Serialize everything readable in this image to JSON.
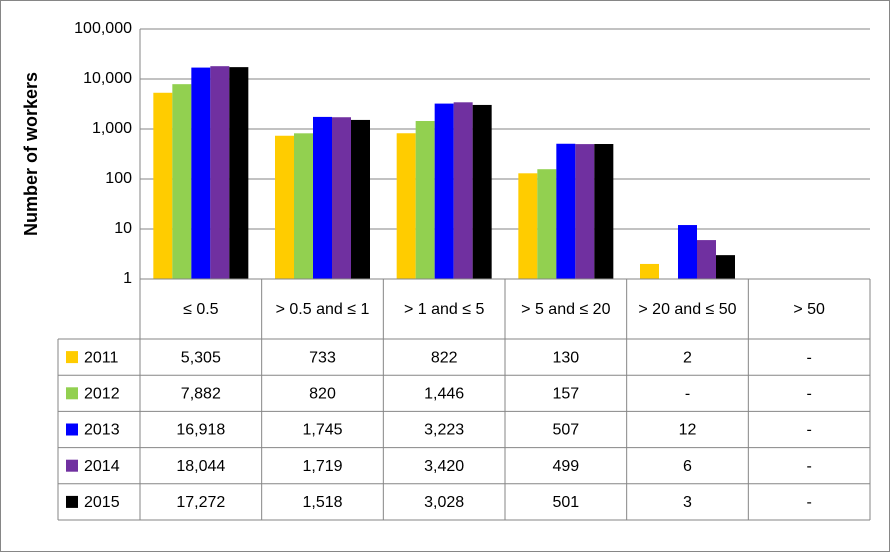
{
  "chart_data": {
    "type": "bar",
    "y_label": "Number of workers",
    "log_scale": true,
    "grid": true,
    "categories": [
      "≤ 0.5",
      "> 0.5 and ≤ 1",
      "> 1 and ≤ 5",
      "> 5 and ≤ 20",
      "> 20 and ≤ 50",
      "> 50"
    ],
    "ylim": [
      1,
      100000
    ],
    "yticks": [
      1,
      10,
      100,
      {
        "value": 1000,
        "label": "1,000"
      },
      {
        "value": 10000,
        "label": "10,000"
      },
      {
        "value": 100000,
        "label": "100,000"
      }
    ],
    "series": [
      {
        "name": "2011",
        "color": "#FFCC00",
        "values": [
          5305,
          733,
          822,
          130,
          2,
          null
        ],
        "value_labels": [
          "5,305",
          "733",
          "822",
          "130",
          "2",
          "-"
        ]
      },
      {
        "name": "2012",
        "color": "#92D050",
        "values": [
          7882,
          820,
          1446,
          157,
          null,
          null
        ],
        "value_labels": [
          "7,882",
          "820",
          "1,446",
          "157",
          "-",
          "-"
        ]
      },
      {
        "name": "2013",
        "color": "#0000FF",
        "values": [
          16918,
          1745,
          3223,
          507,
          12,
          null
        ],
        "value_labels": [
          "16,918",
          "1,745",
          "3,223",
          "507",
          "12",
          "-"
        ]
      },
      {
        "name": "2014",
        "color": "#7030A0",
        "values": [
          18044,
          1719,
          3420,
          499,
          6,
          null
        ],
        "value_labels": [
          "18,044",
          "1,719",
          "3,420",
          "499",
          "6",
          "-"
        ]
      },
      {
        "name": "2015",
        "color": "#000000",
        "values": [
          17272,
          1518,
          3028,
          501,
          3,
          null
        ],
        "value_labels": [
          "17,272",
          "1,518",
          "3,028",
          "501",
          "3",
          "-"
        ]
      }
    ]
  }
}
